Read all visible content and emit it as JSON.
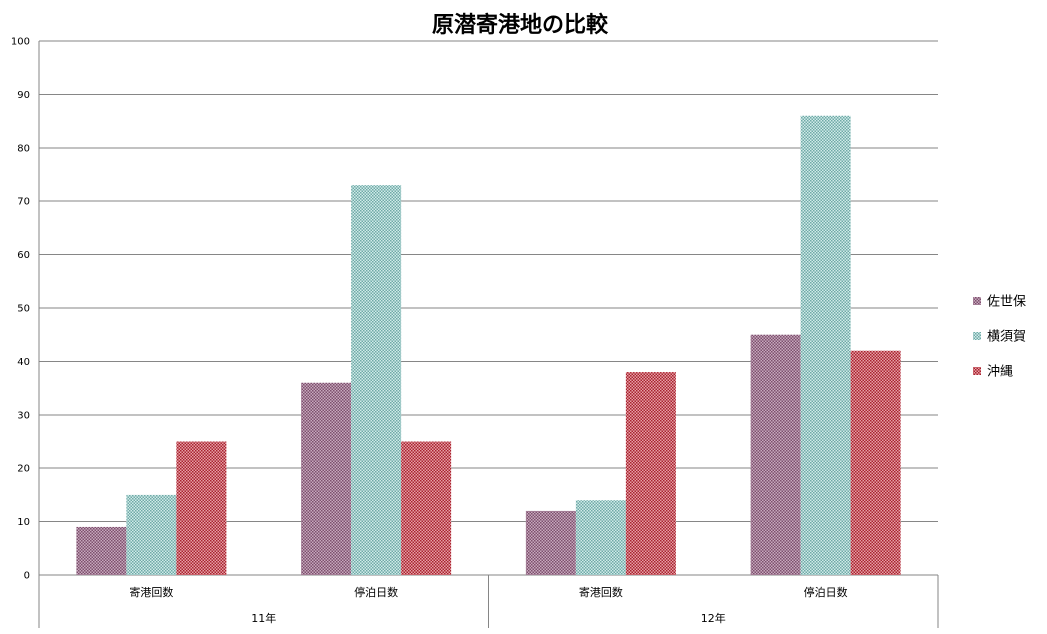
{
  "chart_data": {
    "type": "bar",
    "title": "原潜寄港地の比較",
    "xlabel": "",
    "ylabel": "",
    "ylim": [
      0,
      100
    ],
    "yticks": [
      0,
      10,
      20,
      30,
      40,
      50,
      60,
      70,
      80,
      90,
      100
    ],
    "grid": true,
    "legend_position": "right",
    "groups": [
      {
        "label": "11年",
        "categories": [
          "寄港回数",
          "停泊日数"
        ]
      },
      {
        "label": "12年",
        "categories": [
          "寄港回数",
          "停泊日数"
        ]
      }
    ],
    "categories": [
      "寄港回数",
      "停泊日数",
      "寄港回数",
      "停泊日数"
    ],
    "series": [
      {
        "name": "佐世保",
        "color": "#a0788f",
        "pattern": "dots-purple",
        "values": [
          9,
          36,
          12,
          45
        ]
      },
      {
        "name": "横須賀",
        "color": "#9cc9c6",
        "pattern": "dots-teal",
        "values": [
          15,
          73,
          14,
          86
        ]
      },
      {
        "name": "沖縄",
        "color": "#c0404a",
        "pattern": "dots-red",
        "values": [
          25,
          25,
          38,
          42
        ]
      }
    ]
  }
}
